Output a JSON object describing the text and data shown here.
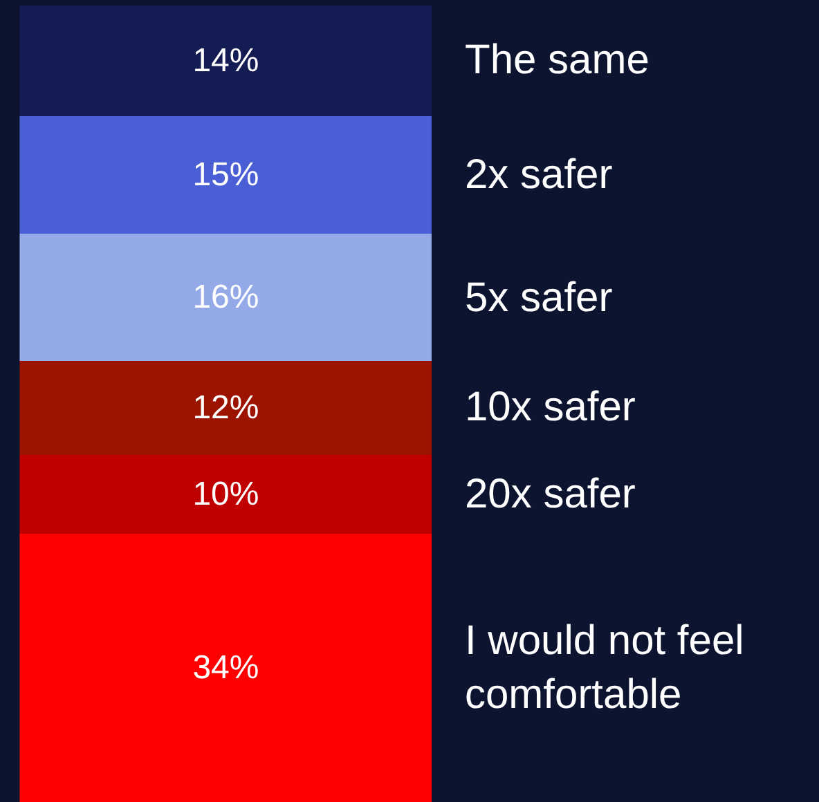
{
  "chart_data": {
    "type": "bar",
    "stacked": true,
    "categories": [
      null
    ],
    "legend": false,
    "tick_labels": false,
    "series": [
      {
        "name": "I would not feel comfortable",
        "color": "#ff0000",
        "values": [
          34
        ],
        "value_labels": [
          "34%"
        ]
      },
      {
        "name": "20x safer",
        "color": "#c00000",
        "values": [
          10
        ],
        "value_labels": [
          "10%"
        ]
      },
      {
        "name": "10x safer",
        "color": "#9c1400",
        "values": [
          12
        ],
        "value_labels": [
          "12%"
        ]
      },
      {
        "name": "5x safer",
        "color": "#94aae8",
        "values": [
          16
        ],
        "value_labels": [
          "16%"
        ]
      },
      {
        "name": "2x safer",
        "color": "#4a5fd6",
        "values": [
          15
        ],
        "value_labels": [
          "15%"
        ]
      },
      {
        "name": "The same",
        "color": "#141c54",
        "values": [
          14
        ],
        "value_labels": [
          "14%"
        ]
      }
    ]
  }
}
